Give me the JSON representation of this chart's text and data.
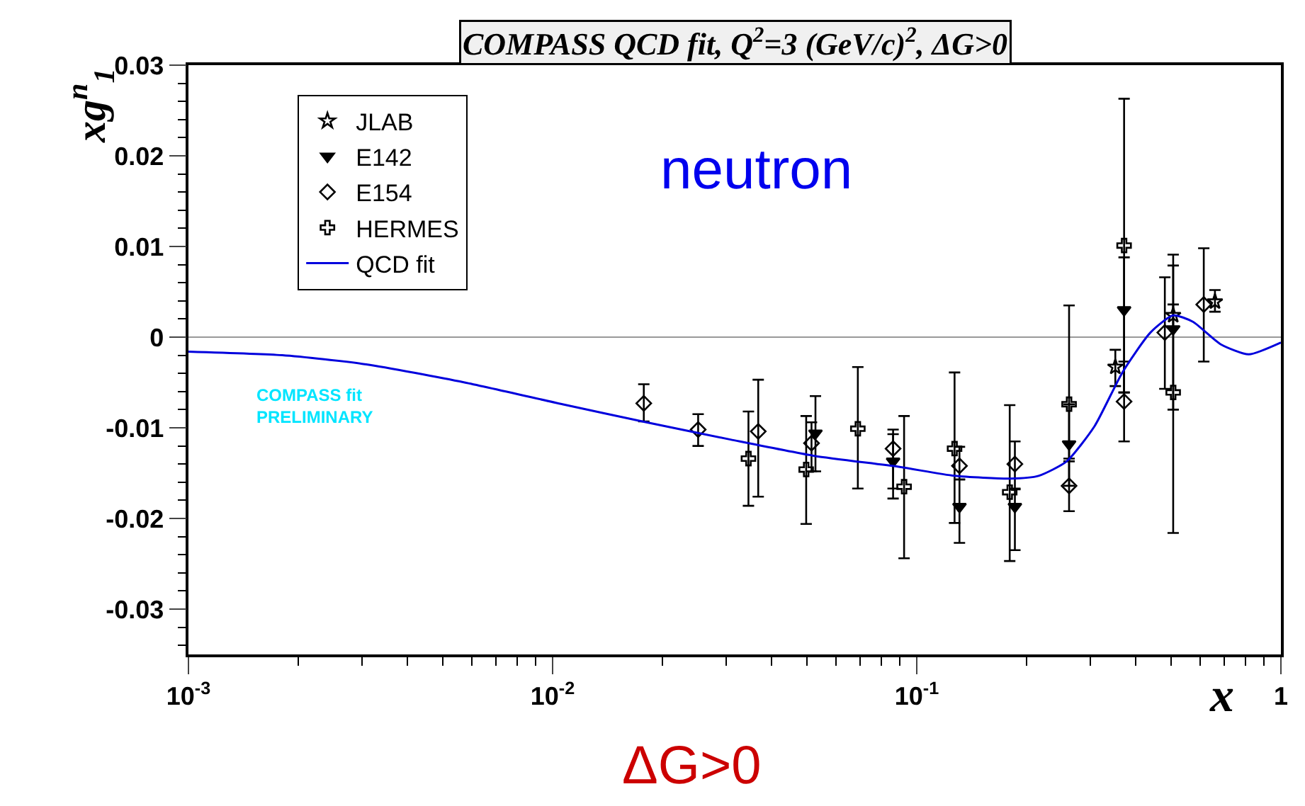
{
  "chart_data": {
    "type": "scatter",
    "title": "COMPASS QCD fit, Q$^{2}$=3 (GeV/c)$^{2}$, ΔG>0",
    "xlabel": "x",
    "ylabel": "xg$^{n}$$_{1}$",
    "log": "x",
    "xlim": [
      0.001,
      1
    ],
    "ylim": [
      -0.035,
      0.03
    ],
    "xticks": [
      {
        "value": 0.001,
        "label": "10$^{-3}$"
      },
      {
        "value": 0.01,
        "label": "10$^{-2}$"
      },
      {
        "value": 0.1,
        "label": "10$^{-1}$"
      },
      {
        "value": 1,
        "label": "1"
      }
    ],
    "yticks": [
      -0.03,
      -0.02,
      -0.01,
      0,
      0.01,
      0.02,
      0.03
    ],
    "grid": false,
    "legend": "top left",
    "ref_lines": [
      {
        "axis": "y",
        "value": 0,
        "color": "#999999"
      }
    ],
    "annotations": [
      "neutron",
      "COMPASS fit PRELIMINARY",
      "ΔG>0"
    ],
    "series": [
      {
        "name": "JLAB",
        "color": "#000000",
        "marker": "star",
        "x": [
          0.351,
          0.506,
          0.659
        ],
        "values": [
          -0.0033,
          0.0024,
          0.0039
        ],
        "errors": [
          [
            -0.0054,
            -0.0014
          ],
          [
            0.0011,
            0.0036
          ],
          [
            0.0028,
            0.0052
          ]
        ]
      },
      {
        "name": "E142",
        "color": "#000000",
        "marker": "triangle",
        "x": [
          0.0527,
          0.0861,
          0.131,
          0.186,
          0.262,
          0.371,
          0.506
        ],
        "values": [
          -0.0106,
          -0.0137,
          -0.0187,
          -0.0187,
          -0.0118,
          0.003,
          0.0009
        ],
        "errors": [
          [
            -0.0148,
            -0.0065
          ],
          [
            -0.0167,
            -0.0107
          ],
          [
            -0.0227,
            -0.0157
          ],
          [
            -0.0235,
            -0.0167
          ],
          [
            -0.0164,
            -0.0074
          ],
          [
            -0.0061,
            0.0088
          ],
          [
            -0.008,
            0.0079
          ]
        ]
      },
      {
        "name": "E154",
        "color": "#000000",
        "marker": "diamond",
        "x": [
          0.0178,
          0.0251,
          0.0367,
          0.0514,
          0.0861,
          0.131,
          0.186,
          0.262,
          0.371,
          0.48,
          0.614
        ],
        "values": [
          -0.0073,
          -0.0102,
          -0.0104,
          -0.0117,
          -0.0123,
          -0.0142,
          -0.014,
          -0.0164,
          -0.0071,
          0.0005,
          0.0036
        ],
        "errors": [
          [
            -0.0093,
            -0.0052
          ],
          [
            -0.012,
            -0.0085
          ],
          [
            -0.0176,
            -0.0047
          ],
          [
            -0.0148,
            -0.0094
          ],
          [
            -0.0178,
            -0.0102
          ],
          [
            -0.0157,
            -0.0121
          ],
          [
            -0.0168,
            -0.0115
          ],
          [
            -0.0192,
            -0.0134
          ],
          [
            -0.0115,
            -0.0027
          ],
          [
            -0.0057,
            0.0066
          ],
          [
            -0.0027,
            0.0098
          ]
        ]
      },
      {
        "name": "HERMES",
        "color": "#000000",
        "marker": "cross",
        "x": [
          0.0345,
          0.0497,
          0.0689,
          0.0923,
          0.127,
          0.18,
          0.262,
          0.371,
          0.506
        ],
        "values": [
          -0.0134,
          -0.0146,
          -0.0101,
          -0.0165,
          -0.0123,
          -0.0171,
          -0.0074,
          0.0101,
          -0.0061
        ],
        "errors": [
          [
            -0.0186,
            -0.0082
          ],
          [
            -0.0206,
            -0.0087
          ],
          [
            -0.0167,
            -0.0033
          ],
          [
            -0.0244,
            -0.0087
          ],
          [
            -0.0205,
            -0.0039
          ],
          [
            -0.0247,
            -0.0075
          ],
          [
            -0.0137,
            0.0035
          ],
          [
            -0.0061,
            0.0263
          ],
          [
            -0.0216,
            0.0091
          ]
        ]
      },
      {
        "name": "QCD fit",
        "type": "line",
        "color": "#0000dd",
        "marker": "none",
        "line_style": "solid",
        "x": [
          0.001,
          0.00181,
          0.00308,
          0.00573,
          0.01064,
          0.0181,
          0.0308,
          0.0524,
          0.0891,
          0.127,
          0.181,
          0.216,
          0.258,
          0.308,
          0.367,
          0.438,
          0.506,
          0.573,
          0.684,
          0.816,
          1.0
        ],
        "values": [
          -0.0016,
          -0.002,
          -0.003,
          -0.005,
          -0.0074,
          -0.0094,
          -0.0113,
          -0.0131,
          -0.0143,
          -0.0153,
          -0.0156,
          -0.0153,
          -0.0137,
          -0.0098,
          -0.0039,
          0.0005,
          0.0024,
          0.0017,
          -0.0008,
          -0.0019,
          -0.0006
        ]
      }
    ]
  }
}
